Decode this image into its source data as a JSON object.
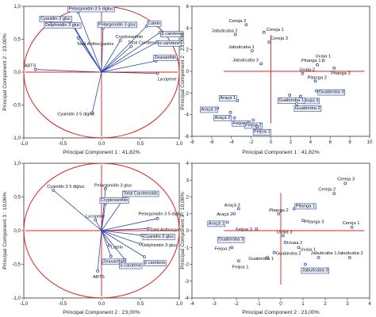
{
  "colors": {
    "frame": "#333333",
    "reference_line": "#e02020",
    "loading_vector": "#2b47a8",
    "point_stroke": "#2b47a8",
    "label_box_stroke": "#2b47a8",
    "label_box_fill": "#eef1fb"
  },
  "chart_data": [
    {
      "type": "scatter",
      "subtype": "correlation-circle-biplot",
      "panel": "top-left",
      "xlabel": "Principal Component 1 : 41,82%",
      "ylabel": "Principal Component 2 : 23,00%",
      "xlim": [
        -1.0,
        1.0
      ],
      "ylim": [
        -1.0,
        1.0
      ],
      "xticks": [
        "-1,0",
        "-0,5",
        "0,0",
        "0,5",
        "1,0"
      ],
      "yticks": [
        "1,0",
        "0,5",
        "0,0",
        "-0,5",
        "-1,0"
      ],
      "unit_circle": true,
      "series": [
        {
          "points": [
            {
              "label": "Pelargonidin 3 5 digluc",
              "x": -0.3,
              "y": 0.91,
              "boxed": true
            },
            {
              "label": "Cyanidin 3 gluc",
              "x": -0.42,
              "y": 0.82,
              "boxed": true
            },
            {
              "label": "Delphinidin 3 gluc",
              "x": -0.38,
              "y": 0.72,
              "boxed": true
            },
            {
              "label": "Total Anthocyanins",
              "x": -0.3,
              "y": 0.52,
              "boxed": false
            },
            {
              "label": "Pelargonidin 3 gluc",
              "x": 0.02,
              "y": 0.67,
              "boxed": true
            },
            {
              "label": "Lutein",
              "x": 0.58,
              "y": 0.7,
              "boxed": true
            },
            {
              "label": "β carotene",
              "x": 0.75,
              "y": 0.6,
              "boxed": true
            },
            {
              "label": "Cryptoxanthin",
              "x": 0.24,
              "y": 0.48,
              "boxed": false
            },
            {
              "label": "Total Carotenoids",
              "x": 0.38,
              "y": 0.39,
              "boxed": false
            },
            {
              "label": "α carotene",
              "x": 0.72,
              "y": 0.46,
              "boxed": true
            },
            {
              "label": "Zeaxanthin",
              "x": 0.7,
              "y": 0.17,
              "boxed": true
            },
            {
              "label": "Lycopene",
              "x": 0.72,
              "y": -0.02,
              "boxed": false
            },
            {
              "label": "ABTS",
              "x": -0.85,
              "y": 0.04,
              "boxed": false
            },
            {
              "label": "Cyanidin 3 5 digluc",
              "x": -0.12,
              "y": -0.62,
              "boxed": false
            }
          ]
        }
      ]
    },
    {
      "type": "scatter",
      "panel": "top-right",
      "xlabel": "Principal Component 1 : 41,82%",
      "ylabel": "Principal Component 2 : 23,00%",
      "xlim": [
        -8,
        10
      ],
      "ylim": [
        -6,
        6
      ],
      "xticks": [
        "-8",
        "-6",
        "-4",
        "-2",
        "0",
        "2",
        "4",
        "6",
        "8",
        "10"
      ],
      "yticks": [
        "6",
        "4",
        "2",
        "0",
        "-2",
        "-4",
        "-6"
      ],
      "series": [
        {
          "points": [
            {
              "label": "Cereja 2",
              "x": -2.5,
              "y": 4.3,
              "boxed": false
            },
            {
              "label": "Cereja 1",
              "x": -0.7,
              "y": 3.6,
              "boxed": false
            },
            {
              "label": "Jabuticaba 2",
              "x": -3.6,
              "y": 3.4,
              "boxed": false
            },
            {
              "label": "Cereja 3",
              "x": -0.2,
              "y": 2.7,
              "boxed": false
            },
            {
              "label": "Jabuticaba 1",
              "x": -1.9,
              "y": 1.9,
              "boxed": false
            },
            {
              "label": "Jabuticaba 3",
              "x": -1.0,
              "y": 0.7,
              "boxed": false
            },
            {
              "label": "Uvaia 1",
              "x": 5.3,
              "y": 1.0,
              "boxed": false
            },
            {
              "label": "Pitanga 1",
              "x": 4.7,
              "y": 0.6,
              "boxed": false
            },
            {
              "label": "Pitanga 3",
              "x": 6.4,
              "y": 0.3,
              "boxed": false
            },
            {
              "label": "Uvaia 2",
              "x": 3.2,
              "y": -0.2,
              "boxed": false
            },
            {
              "label": "Pitanga 2",
              "x": 4.5,
              "y": -0.9,
              "boxed": false
            },
            {
              "label": "Guabiroba 3",
              "x": 4.6,
              "y": -1.8,
              "boxed": true
            },
            {
              "label": "Uvaia 3",
              "x": 3.0,
              "y": -2.3,
              "boxed": true
            },
            {
              "label": "Guabiroba 1",
              "x": 1.9,
              "y": -2.2,
              "boxed": true
            },
            {
              "label": "Guabiroba 2",
              "x": 2.6,
              "y": -3.0,
              "boxed": true
            },
            {
              "label": "Araçá 1",
              "x": -3.4,
              "y": -2.7,
              "boxed": true
            },
            {
              "label": "Araçá 3",
              "x": -5.4,
              "y": -3.4,
              "boxed": true
            },
            {
              "label": "Araçá 2",
              "x": -4.1,
              "y": -3.8,
              "boxed": true
            },
            {
              "label": "Feijoa 3",
              "x": -3.7,
              "y": -4.3,
              "boxed": true
            },
            {
              "label": "Feijoa 2",
              "x": -1.8,
              "y": -4.5,
              "boxed": true
            },
            {
              "label": "Feijoa 1",
              "x": -1.4,
              "y": -5.1,
              "boxed": true
            }
          ]
        }
      ]
    },
    {
      "type": "scatter",
      "subtype": "correlation-circle-biplot",
      "panel": "bottom-left",
      "xlabel": "Principal Component 2 : 23,00%",
      "ylabel": "Principal Component 3 : 10,06%",
      "xlim": [
        -1.0,
        1.0
      ],
      "ylim": [
        -1.0,
        1.0
      ],
      "xticks": [
        "-1,0",
        "-0,5",
        "0,0",
        "0,5",
        "1,0"
      ],
      "yticks": [
        "1,0",
        "0,5",
        "0,0",
        "-0,5",
        "-1,0"
      ],
      "unit_circle": true,
      "series": [
        {
          "points": [
            {
              "label": "Cyanidin 3 5 digluc",
              "x": -0.62,
              "y": 0.6,
              "boxed": false
            },
            {
              "label": "Pelargonidin 3 gluc",
              "x": 0.05,
              "y": 0.62,
              "boxed": false
            },
            {
              "label": "Total Carotenoids",
              "x": 0.3,
              "y": 0.5,
              "boxed": true
            },
            {
              "label": "Cryptoxanthin",
              "x": 0.05,
              "y": 0.4,
              "boxed": true
            },
            {
              "label": "Lycopene",
              "x": -0.08,
              "y": 0.16,
              "boxed": false
            },
            {
              "label": "Pelargonidin 3 5 digluc",
              "x": 0.72,
              "y": 0.18,
              "boxed": false
            },
            {
              "label": "Total Anthocyan",
              "x": 0.6,
              "y": 0.03,
              "boxed": false
            },
            {
              "label": "Cyanidin 3 gluc",
              "x": 0.52,
              "y": -0.07,
              "boxed": true
            },
            {
              "label": "Delphinidin 3 gluc",
              "x": 0.5,
              "y": -0.2,
              "boxed": false
            },
            {
              "label": "Lutein",
              "x": 0.1,
              "y": -0.22,
              "boxed": false
            },
            {
              "label": "Zeaxanthin",
              "x": 0.12,
              "y": -0.38,
              "boxed": true
            },
            {
              "label": "α carotene",
              "x": 0.3,
              "y": -0.43,
              "boxed": true
            },
            {
              "label": "β carotene",
              "x": 0.55,
              "y": -0.39,
              "boxed": true
            },
            {
              "label": "ABTS",
              "x": -0.05,
              "y": -0.6,
              "boxed": false
            }
          ]
        }
      ]
    },
    {
      "type": "scatter",
      "panel": "bottom-right",
      "xlabel": "Principal Component 2 : 23,00%",
      "ylabel": "Principal Component 3 : 10,06%",
      "xlim": [
        -4,
        4
      ],
      "ylim": [
        -4,
        4
      ],
      "xticks": [
        "-4",
        "-3",
        "-2",
        "-1",
        "0",
        "1",
        "2",
        "3",
        "4"
      ],
      "yticks": [
        "4",
        "3",
        "2",
        "1",
        "0",
        "-1",
        "-2",
        "-3",
        "-4"
      ],
      "series": [
        {
          "points": [
            {
              "label": "Cereja 3",
              "x": 2.9,
              "y": 2.8,
              "boxed": false
            },
            {
              "label": "Cereja 2",
              "x": 2.4,
              "y": 2.2,
              "boxed": false
            },
            {
              "label": "Araçá 3",
              "x": -1.9,
              "y": 1.3,
              "boxed": false
            },
            {
              "label": "Pitanga 1",
              "x": 0.6,
              "y": 1.3,
              "boxed": true
            },
            {
              "label": "Araçá 2",
              "x": -2.1,
              "y": 1.0,
              "boxed": false
            },
            {
              "label": "Pitanga 2",
              "x": -0.1,
              "y": 1.0,
              "boxed": false
            },
            {
              "label": "Araçá 1",
              "x": -2.4,
              "y": 0.5,
              "boxed": true
            },
            {
              "label": "Pitanga 3",
              "x": 1.0,
              "y": 0.6,
              "boxed": false
            },
            {
              "label": "Feijoa 3",
              "x": -1.1,
              "y": 0.1,
              "boxed": false
            },
            {
              "label": "Cereja 1",
              "x": 3.2,
              "y": 0.2,
              "boxed": false
            },
            {
              "label": "Guabiroba 3",
              "x": -2.1,
              "y": -0.5,
              "boxed": true
            },
            {
              "label": "Uvaia 3",
              "x": 0.1,
              "y": -0.3,
              "boxed": false
            },
            {
              "label": "Uvaia 2",
              "x": 0.2,
              "y": -0.7,
              "boxed": false
            },
            {
              "label": "Feijoa 2",
              "x": -2.2,
              "y": -1.0,
              "boxed": false
            },
            {
              "label": "Uvaia 1",
              "x": 0.8,
              "y": -1.0,
              "boxed": false
            },
            {
              "label": "Guabiroba 2",
              "x": -0.3,
              "y": -1.3,
              "boxed": false
            },
            {
              "label": "Guabiroba 1",
              "x": -0.6,
              "y": -1.6,
              "boxed": false
            },
            {
              "label": "Feijoa 1",
              "x": -1.9,
              "y": -1.8,
              "boxed": false
            },
            {
              "label": "Jabuticaba 1",
              "x": 1.7,
              "y": -1.6,
              "boxed": false
            },
            {
              "label": "Jabuticaba 2",
              "x": 3.1,
              "y": -1.6,
              "boxed": false
            },
            {
              "label": "Jabuticaba 3",
              "x": 1.1,
              "y": -2.0,
              "boxed": true
            }
          ]
        }
      ]
    }
  ]
}
